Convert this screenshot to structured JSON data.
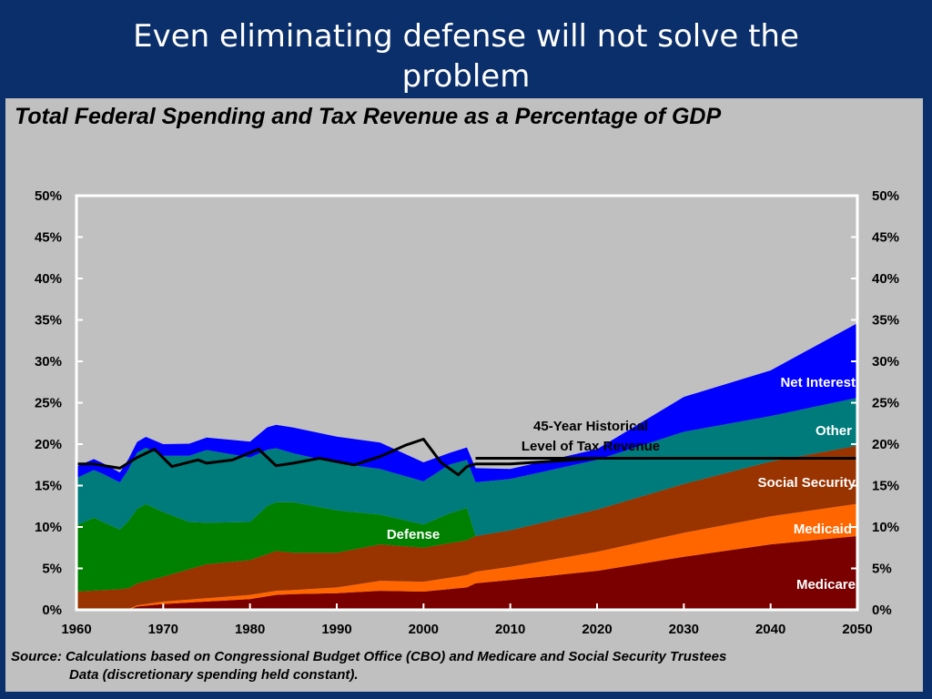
{
  "slide": {
    "title_line1": "Even eliminating defense will not solve the",
    "title_line2": "problem",
    "source_line1": "Source: Calculations based on Congressional Budget Office (CBO) and Medicare and Social Security Trustees",
    "source_line2": "Data (discretionary spending held constant)."
  },
  "chart_data": {
    "type": "area",
    "title": "Total Federal Spending and Tax Revenue as a Percentage of GDP",
    "xlabel": "",
    "ylabel": "",
    "xlim": [
      1960,
      2050
    ],
    "ylim": [
      0,
      50
    ],
    "x_ticks": [
      1960,
      1970,
      1980,
      1990,
      2000,
      2010,
      2020,
      2030,
      2040,
      2050
    ],
    "y_ticks": [
      0,
      5,
      10,
      15,
      20,
      25,
      30,
      35,
      40,
      45,
      50
    ],
    "y_tick_suffix": "%",
    "stack_order": [
      "Medicare",
      "Medicaid",
      "Social Security",
      "Defense",
      "Other",
      "Net Interest"
    ],
    "colors": {
      "Medicare": "#7a0000",
      "Medicaid": "#ff6600",
      "Social Security": "#993300",
      "Defense": "#008000",
      "Other": "#007b7b",
      "Net Interest": "#0000ff",
      "Revenue": "#000000",
      "Historical": "#000000"
    },
    "series": [
      {
        "name": "Medicare",
        "x": [
          1960,
          1966,
          1967,
          1970,
          1975,
          1980,
          1983,
          1985,
          1990,
          1995,
          2000,
          2005,
          2006,
          2010,
          2020,
          2030,
          2040,
          2050
        ],
        "values": [
          0,
          0,
          0.4,
          0.7,
          1.0,
          1.3,
          1.8,
          1.9,
          2.0,
          2.3,
          2.2,
          2.7,
          3.2,
          3.6,
          4.7,
          6.4,
          7.9,
          8.9
        ]
      },
      {
        "name": "Medicaid",
        "x": [
          1960,
          1966,
          1970,
          1975,
          1980,
          1985,
          1990,
          1995,
          2000,
          2005,
          2006,
          2010,
          2020,
          2030,
          2040,
          2050
        ],
        "values": [
          0,
          0.1,
          0.3,
          0.4,
          0.5,
          0.5,
          0.7,
          1.2,
          1.2,
          1.5,
          1.4,
          1.6,
          2.3,
          2.9,
          3.4,
          3.9
        ]
      },
      {
        "name": "Social Security",
        "x": [
          1960,
          1965,
          1970,
          1975,
          1980,
          1983,
          1985,
          1990,
          1995,
          2000,
          2005,
          2006,
          2010,
          2020,
          2030,
          2040,
          2050
        ],
        "values": [
          2.2,
          2.4,
          3.0,
          4.1,
          4.2,
          4.8,
          4.5,
          4.2,
          4.4,
          4.1,
          4.2,
          4.3,
          4.4,
          5.1,
          5.9,
          6.6,
          7.0
        ]
      },
      {
        "name": "Defense",
        "x": [
          1960,
          1962,
          1965,
          1967,
          1968,
          1970,
          1973,
          1975,
          1980,
          1982,
          1985,
          1990,
          1995,
          2000,
          2003,
          2005,
          2006,
          2010,
          2050
        ],
        "values": [
          8.0,
          8.8,
          7.2,
          9.0,
          9.3,
          7.8,
          5.7,
          5.0,
          4.6,
          5.8,
          6.1,
          5.1,
          3.6,
          2.8,
          3.6,
          3.9,
          0,
          0,
          0
        ]
      },
      {
        "name": "Other",
        "x": [
          1960,
          1963,
          1965,
          1967,
          1970,
          1975,
          1980,
          1982,
          1985,
          1990,
          1995,
          2000,
          2003,
          2005,
          2006,
          2010,
          2020,
          2030,
          2040,
          2050
        ],
        "values": [
          5.7,
          5.8,
          5.7,
          6.8,
          6.8,
          8.8,
          7.8,
          6.8,
          5.9,
          5.7,
          5.5,
          5.2,
          5.9,
          5.8,
          6.5,
          6.2,
          6.0,
          6.3,
          5.5,
          5.8
        ]
      },
      {
        "name": "Net Interest",
        "x": [
          1960,
          1965,
          1970,
          1975,
          1980,
          1982,
          1985,
          1990,
          1995,
          2000,
          2003,
          2005,
          2006,
          2010,
          2020,
          2030,
          2040,
          2050
        ],
        "values": [
          1.4,
          1.2,
          1.4,
          1.5,
          1.9,
          2.7,
          3.1,
          3.2,
          3.2,
          2.3,
          1.4,
          1.5,
          1.7,
          1.2,
          1.3,
          4.2,
          5.5,
          9.0
        ]
      },
      {
        "name": "Revenue",
        "x": [
          1960,
          1962,
          1965,
          1967,
          1969,
          1971,
          1974,
          1975,
          1978,
          1981,
          1983,
          1985,
          1988,
          1992,
          1995,
          1998,
          2000,
          2002,
          2004,
          2005,
          2006,
          2010,
          2020,
          2050
        ],
        "values": [
          17.6,
          17.6,
          17.1,
          18.4,
          19.4,
          17.3,
          18.1,
          17.7,
          18.1,
          19.4,
          17.4,
          17.7,
          18.3,
          17.5,
          18.5,
          19.9,
          20.6,
          17.8,
          16.3,
          17.3,
          17.6,
          17.6,
          18.3,
          18.3
        ]
      },
      {
        "name": "Historical",
        "x": [
          2006,
          2050
        ],
        "values": [
          18.3,
          18.3
        ]
      }
    ],
    "labels": {
      "net_interest": "Net Interest",
      "other": "Other",
      "social_security": "Social Security",
      "medicaid": "Medicaid",
      "medicare": "Medicare",
      "defense": "Defense",
      "historical_line1": "45-Year Historical",
      "historical_line2": "Level of Tax Revenue"
    }
  }
}
